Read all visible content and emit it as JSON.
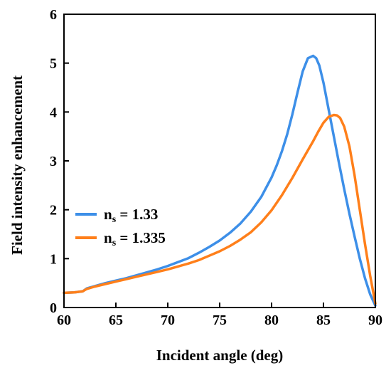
{
  "chart_data": {
    "type": "line",
    "title": "",
    "xlabel": "Incident angle (deg)",
    "ylabel": "Field intensity enhancement",
    "xlim": [
      60,
      90
    ],
    "ylim": [
      0,
      6
    ],
    "xticks": [
      60,
      65,
      70,
      75,
      80,
      85,
      90
    ],
    "yticks": [
      0,
      1,
      2,
      3,
      4,
      5,
      6
    ],
    "grid": false,
    "legend_position": "center-left",
    "series": [
      {
        "name_main": "n",
        "name_sub": "s",
        "name_rest": " = 1.33",
        "color": "#3d8fe8",
        "x": [
          60,
          61,
          61.8,
          62.2,
          63,
          64,
          65,
          66,
          67,
          68,
          69,
          70,
          71,
          72,
          73,
          74,
          75,
          76,
          77,
          78,
          79,
          80,
          80.5,
          81,
          81.5,
          82,
          82.5,
          83,
          83.5,
          84,
          84.3,
          84.6,
          85,
          85.5,
          86,
          86.5,
          87,
          87.5,
          88,
          88.5,
          89,
          89.5,
          90
        ],
        "y": [
          0.3,
          0.31,
          0.33,
          0.39,
          0.44,
          0.5,
          0.55,
          0.6,
          0.66,
          0.72,
          0.78,
          0.85,
          0.93,
          1.01,
          1.12,
          1.24,
          1.37,
          1.53,
          1.72,
          1.96,
          2.26,
          2.66,
          2.91,
          3.2,
          3.54,
          3.95,
          4.4,
          4.83,
          5.1,
          5.15,
          5.1,
          4.95,
          4.6,
          4.05,
          3.5,
          2.95,
          2.42,
          1.92,
          1.45,
          1.0,
          0.6,
          0.27,
          0.04
        ]
      },
      {
        "name_main": "n",
        "name_sub": "s",
        "name_rest": " = 1.335",
        "color": "#ff7f1a",
        "x": [
          60,
          61,
          61.8,
          62.2,
          63,
          64,
          65,
          66,
          67,
          68,
          69,
          70,
          71,
          72,
          73,
          74,
          75,
          76,
          77,
          78,
          79,
          80,
          81,
          82,
          83,
          84,
          84.5,
          85,
          85.5,
          86,
          86.3,
          86.6,
          87,
          87.5,
          88,
          88.5,
          89,
          89.5,
          90
        ],
        "y": [
          0.3,
          0.31,
          0.33,
          0.38,
          0.43,
          0.48,
          0.53,
          0.58,
          0.63,
          0.68,
          0.73,
          0.78,
          0.84,
          0.9,
          0.97,
          1.06,
          1.15,
          1.26,
          1.39,
          1.54,
          1.74,
          1.99,
          2.3,
          2.65,
          3.03,
          3.4,
          3.6,
          3.78,
          3.9,
          3.94,
          3.93,
          3.88,
          3.7,
          3.3,
          2.7,
          2.0,
          1.3,
          0.65,
          0.08
        ]
      }
    ]
  }
}
